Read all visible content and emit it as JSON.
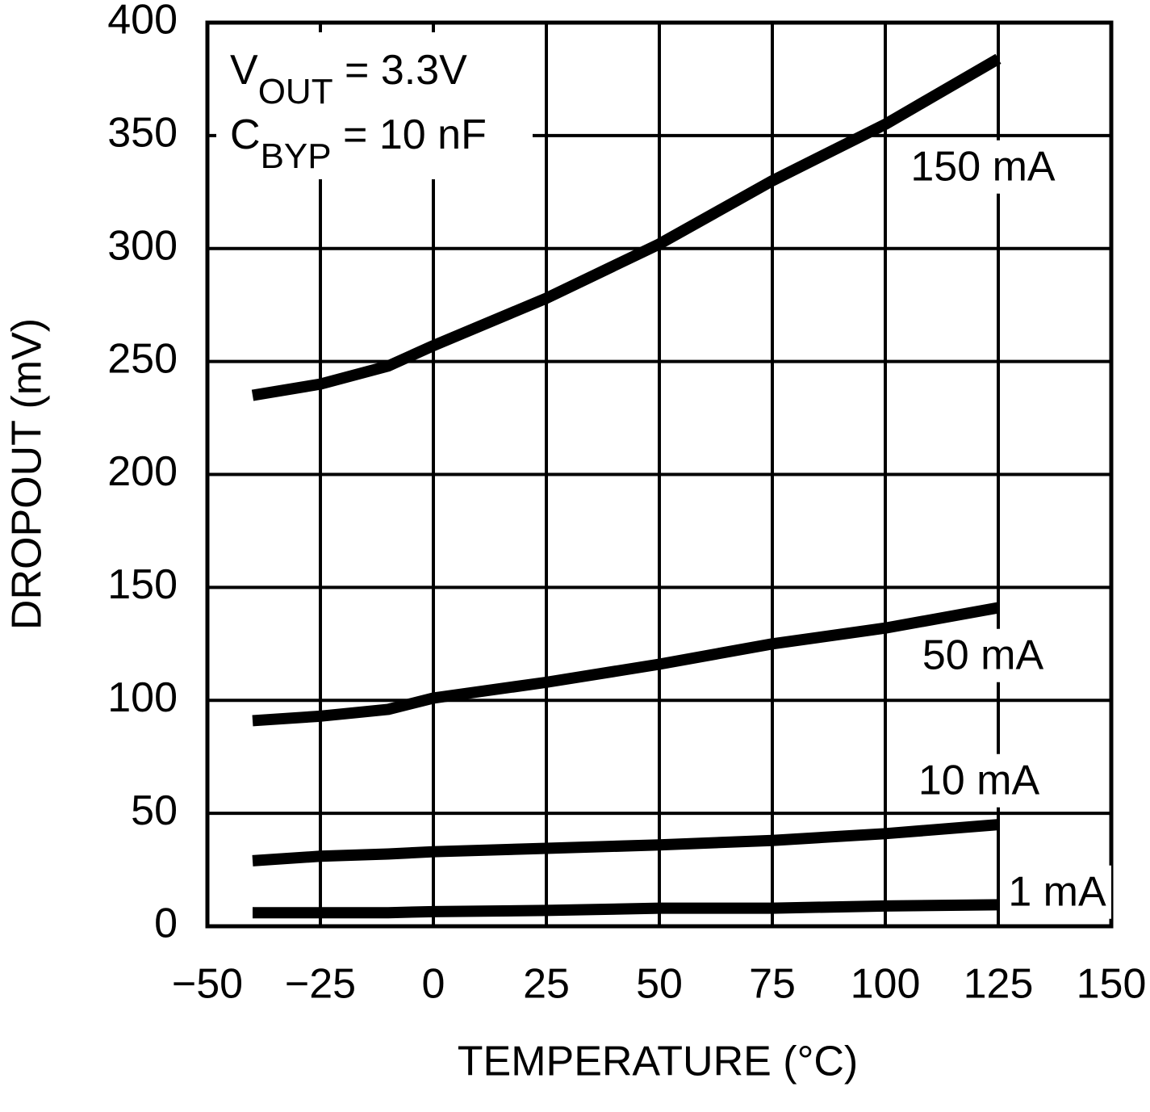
{
  "chart_data": {
    "type": "line",
    "xlabel": "TEMPERATURE (°C)",
    "ylabel": "DROPOUT (mV)",
    "annotations": [
      [
        "V",
        "OUT",
        " = 3.3V"
      ],
      [
        "C",
        "BYP",
        " = 10 nF"
      ]
    ],
    "x": [
      -40,
      -25,
      -10,
      0,
      25,
      50,
      75,
      100,
      125
    ],
    "series": [
      {
        "name": "150 mA",
        "color": "#000000",
        "values": [
          235,
          240,
          248,
          257,
          278,
          302,
          330,
          355,
          384
        ]
      },
      {
        "name": "50 mA",
        "color": "#000000",
        "values": [
          91,
          93,
          96,
          101,
          108,
          116,
          125,
          132,
          141
        ]
      },
      {
        "name": "10 mA",
        "color": "#000000",
        "values": [
          29,
          31,
          32,
          33,
          34.5,
          36,
          38,
          41,
          45
        ]
      },
      {
        "name": "1 mA",
        "color": "#000000",
        "values": [
          6,
          6,
          6,
          6.5,
          7,
          8,
          8,
          9,
          9.5
        ]
      }
    ],
    "xlim": [
      -50,
      150
    ],
    "xticks": [
      {
        "value": -50,
        "label": "−50"
      },
      {
        "value": -25,
        "label": "−25"
      },
      0,
      25,
      50,
      75,
      100,
      125,
      150
    ],
    "ylim": [
      0,
      400
    ],
    "yticks": [
      0,
      50,
      100,
      150,
      200,
      250,
      300,
      350,
      400
    ],
    "grid": true
  }
}
